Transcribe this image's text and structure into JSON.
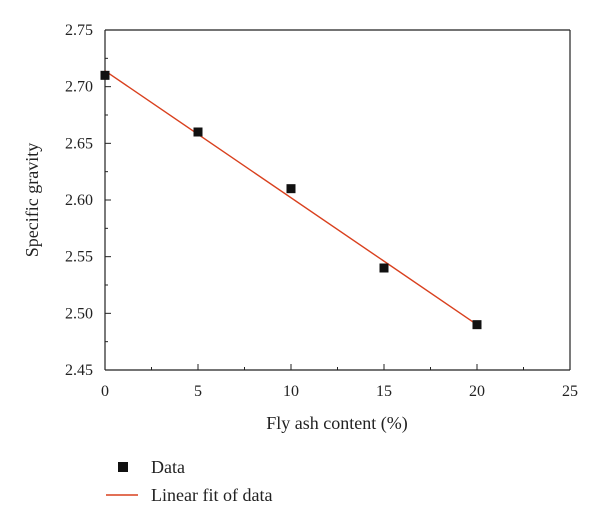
{
  "chart_data": {
    "type": "scatter",
    "title": "",
    "xlabel": "Fly ash content (%)",
    "ylabel": "Specific gravity",
    "xlim": [
      0,
      25
    ],
    "ylim": [
      2.45,
      2.75
    ],
    "x_ticks": [
      "0",
      "5",
      "10",
      "15",
      "20",
      "25"
    ],
    "y_ticks": [
      "2.45",
      "2.50",
      "2.55",
      "2.60",
      "2.65",
      "2.70",
      "2.75"
    ],
    "grid": false,
    "legend_position": "bottom",
    "series": [
      {
        "name": "Data",
        "kind": "scatter",
        "color": "#111111",
        "points": [
          {
            "x": 0,
            "y": 2.71
          },
          {
            "x": 5,
            "y": 2.66
          },
          {
            "x": 10,
            "y": 2.61
          },
          {
            "x": 15,
            "y": 2.54
          },
          {
            "x": 20,
            "y": 2.49
          }
        ]
      },
      {
        "name": "Linear fit of data",
        "kind": "line",
        "color": "#d9401e",
        "points": [
          {
            "x": 0,
            "y": 2.714
          },
          {
            "x": 20,
            "y": 2.49
          }
        ]
      }
    ]
  }
}
